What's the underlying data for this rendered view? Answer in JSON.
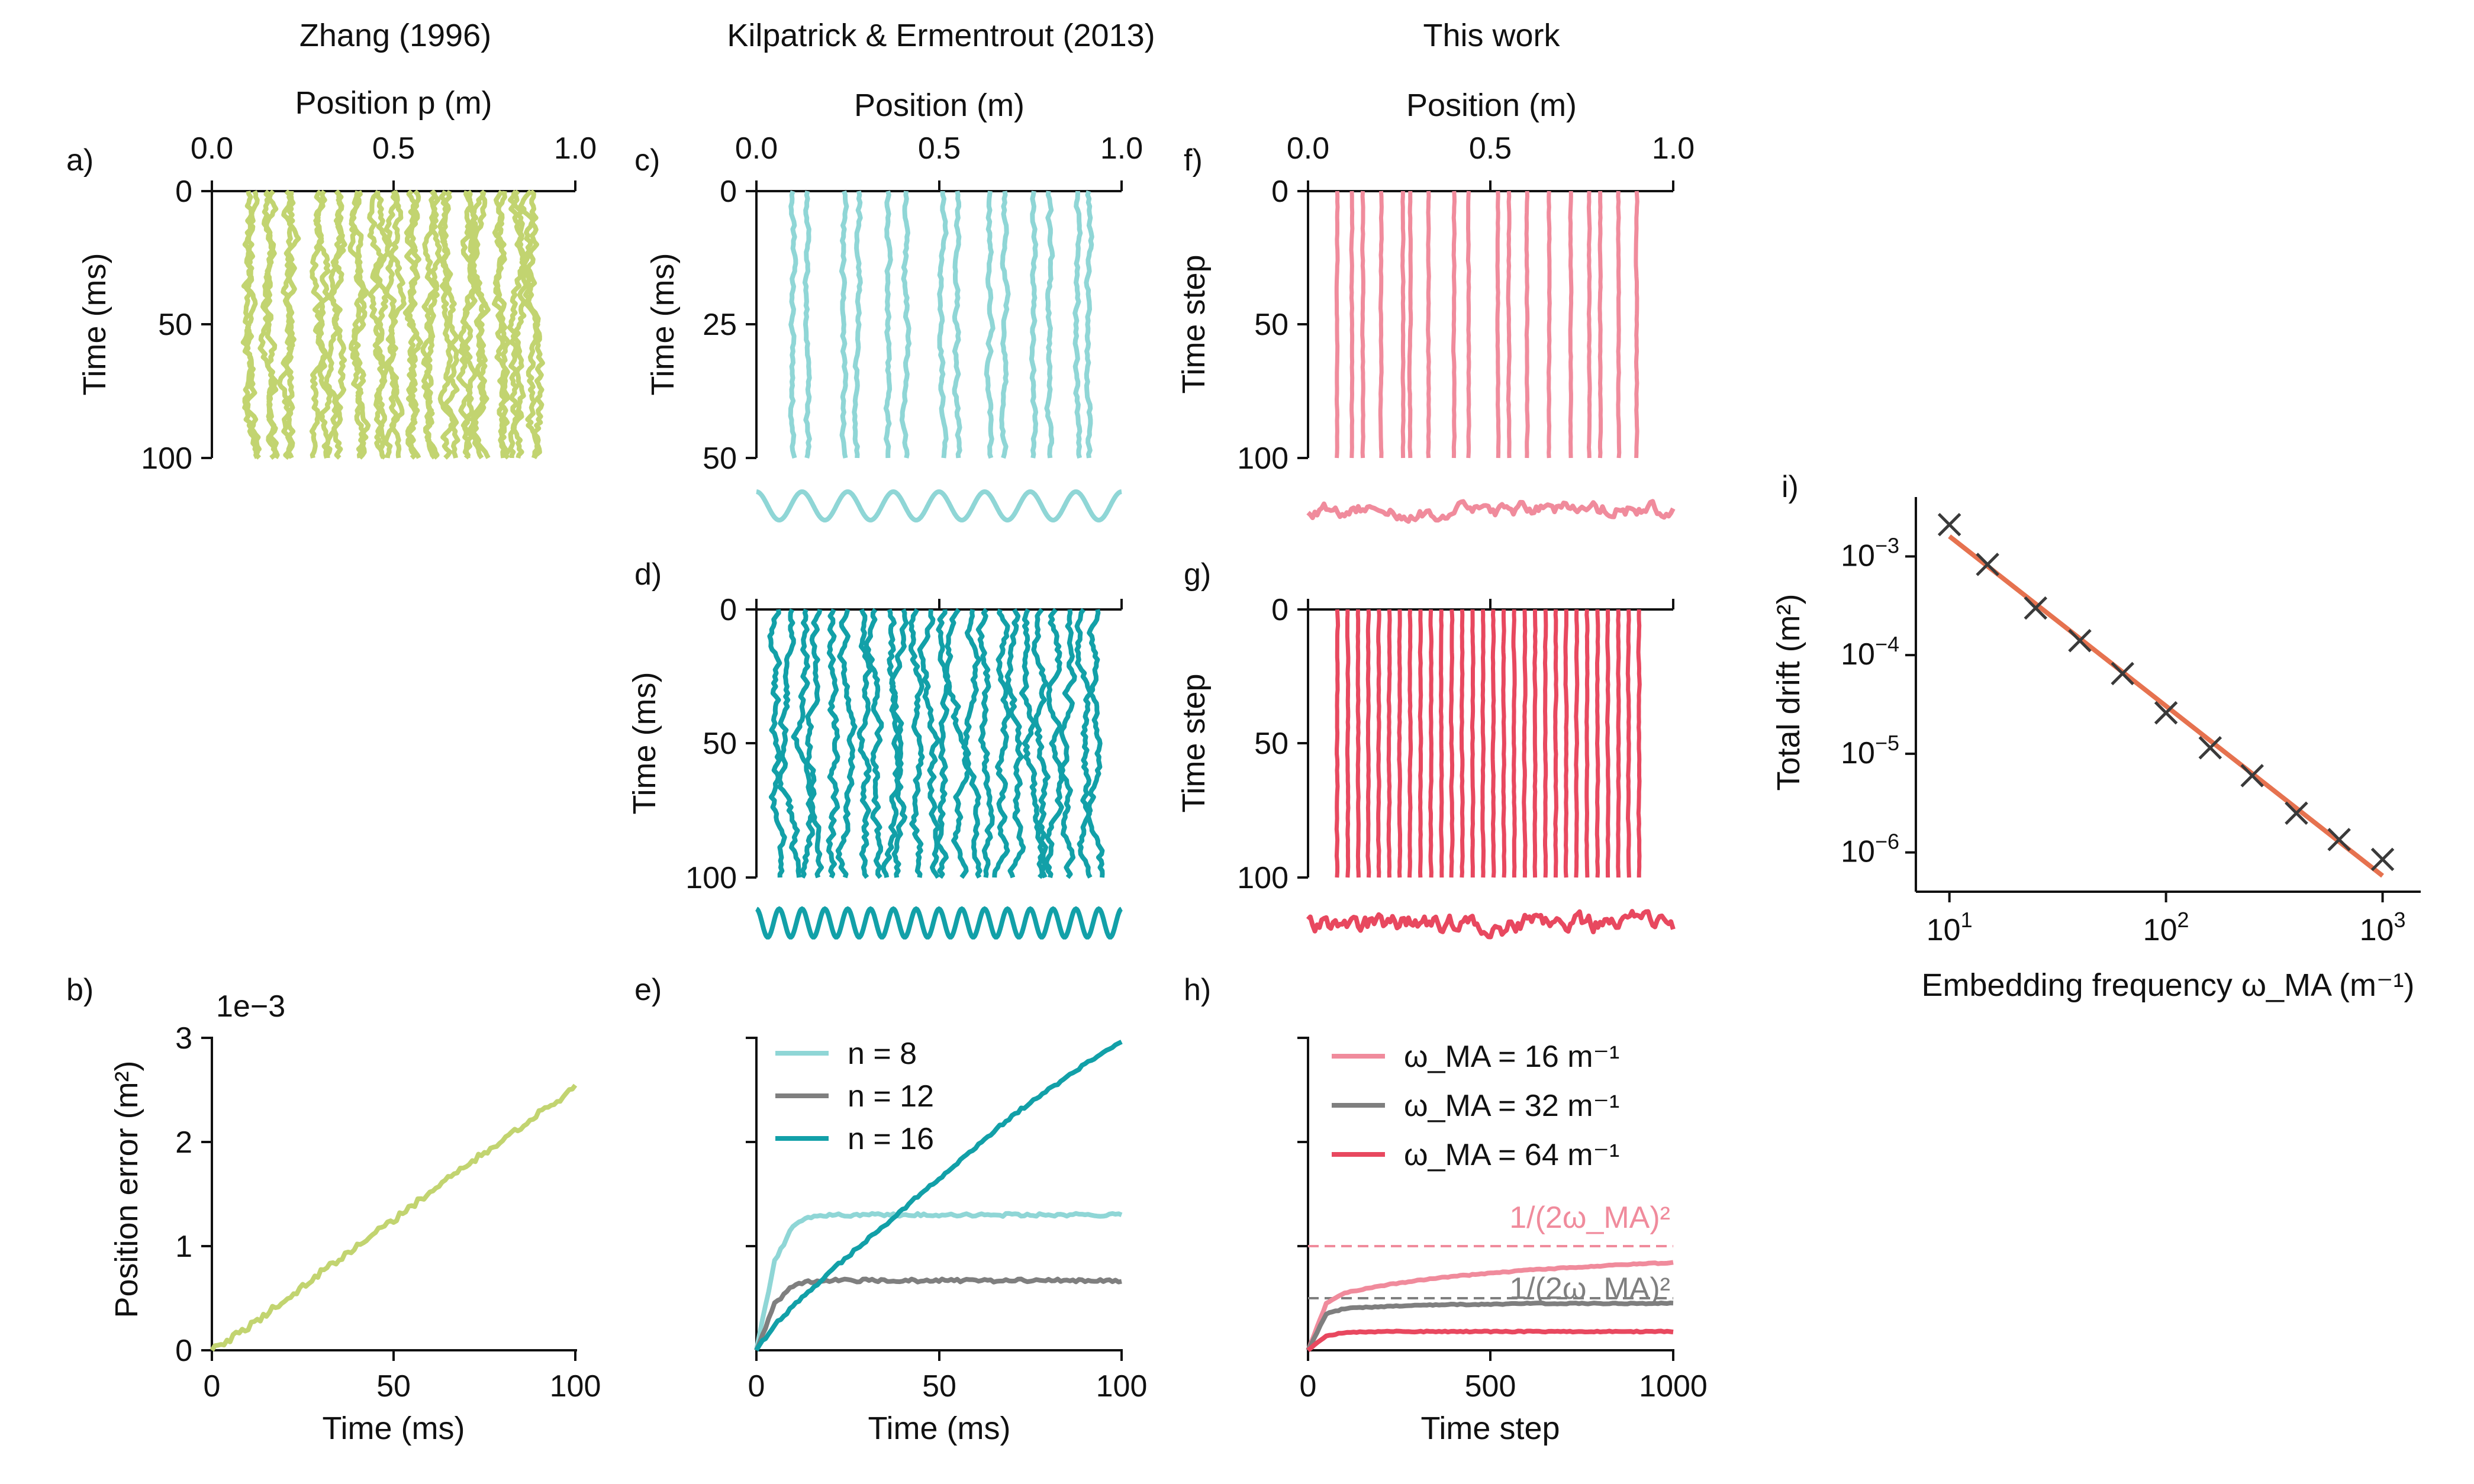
{
  "colors": {
    "zhang": "#c2d470",
    "kilpatrick_n8": "#8fd6d6",
    "kilpatrick_n16": "#12a0a8",
    "gray": "#7f7f7f",
    "this_w16": "#f08b9c",
    "this_w64": "#e8485f",
    "fit_line": "#e6724f",
    "marker": "#3a3a3a"
  },
  "column_titles": [
    "Zhang (1996)",
    "Kilpatrick & Ermentrout (2013)",
    "This work"
  ],
  "panel_letters": [
    "a)",
    "b)",
    "c)",
    "d)",
    "e)",
    "f)",
    "g)",
    "h)",
    "i)"
  ],
  "chart_data": [
    {
      "id": "a",
      "type": "line",
      "title": "Zhang (1996)",
      "xlabel": "Position p (m)",
      "ylabel": "Time (ms)",
      "xlim": [
        0,
        1
      ],
      "ylim": [
        100,
        0
      ],
      "xticks": [
        "0.0",
        "0.5",
        "1.0"
      ],
      "yticks": [
        "0",
        "50",
        "100"
      ],
      "trajectories": "clusters of noisy trajectories at approx. 0.12, 0.20, 0.33, 0.42, 0.50, 0.57, 0.68, 0.77, 0.84"
    },
    {
      "id": "b",
      "type": "line",
      "xlabel": "Time (ms)",
      "ylabel": "Position error (m²)",
      "scale_label": "1e−3",
      "xlim": [
        0,
        100
      ],
      "ylim": [
        0,
        3
      ],
      "xticks": [
        "0",
        "50",
        "100"
      ],
      "yticks": [
        "0",
        "1",
        "2",
        "3"
      ],
      "x": [
        0,
        10,
        20,
        30,
        40,
        50,
        60,
        70,
        80,
        90,
        100
      ],
      "series": [
        {
          "name": "Zhang",
          "values": [
            0,
            0.22,
            0.48,
            0.75,
            1.0,
            1.25,
            1.52,
            1.78,
            2.02,
            2.28,
            2.52
          ]
        }
      ]
    },
    {
      "id": "c",
      "type": "line",
      "xlabel": "Position (m)",
      "ylabel": "Time (ms)",
      "xlim": [
        0,
        1
      ],
      "ylim": [
        50,
        0
      ],
      "xticks": [
        "0.0",
        "0.5",
        "1.0"
      ],
      "yticks": [
        "0",
        "25",
        "50"
      ],
      "bumps": 8
    },
    {
      "id": "d",
      "type": "line",
      "ylabel": "Time (ms)",
      "xlim": [
        0,
        1
      ],
      "ylim": [
        100,
        0
      ],
      "yticks": [
        "0",
        "50",
        "100"
      ],
      "bumps": 16
    },
    {
      "id": "e",
      "type": "line",
      "xlabel": "Time (ms)",
      "xlim": [
        0,
        100
      ],
      "xticks": [
        "0",
        "50",
        "100"
      ],
      "x": [
        0,
        5,
        10,
        15,
        20,
        30,
        40,
        50,
        60,
        70,
        80,
        90,
        100
      ],
      "series": [
        {
          "name": "n = 8",
          "values": [
            0,
            0.85,
            1.2,
            1.28,
            1.3,
            1.3,
            1.3,
            1.3,
            1.3,
            1.3,
            1.3,
            1.3,
            1.3
          ]
        },
        {
          "name": "n = 12",
          "values": [
            0,
            0.45,
            0.62,
            0.66,
            0.67,
            0.67,
            0.67,
            0.67,
            0.67,
            0.67,
            0.67,
            0.67,
            0.67
          ]
        },
        {
          "name": "n = 16",
          "values": [
            0,
            0.25,
            0.42,
            0.58,
            0.75,
            1.05,
            1.35,
            1.65,
            1.95,
            2.25,
            2.5,
            2.75,
            2.97
          ]
        }
      ],
      "ylim": [
        0,
        3
      ]
    },
    {
      "id": "f",
      "type": "line",
      "title": "This work",
      "xlabel": "Position (m)",
      "ylabel": "Time step",
      "xlim": [
        0,
        1
      ],
      "ylim": [
        100,
        0
      ],
      "xticks": [
        "0.0",
        "0.5",
        "1.0"
      ],
      "yticks": [
        "0",
        "50",
        "100"
      ]
    },
    {
      "id": "g",
      "type": "line",
      "ylabel": "Time step",
      "xlim": [
        0,
        1
      ],
      "ylim": [
        100,
        0
      ],
      "yticks": [
        "0",
        "50",
        "100"
      ]
    },
    {
      "id": "h",
      "type": "line",
      "xlabel": "Time step",
      "xlim": [
        0,
        1000
      ],
      "xticks": [
        "0",
        "500",
        "1000"
      ],
      "ylim": [
        0,
        3
      ],
      "x": [
        0,
        50,
        100,
        200,
        300,
        400,
        500,
        600,
        700,
        800,
        900,
        1000
      ],
      "series": [
        {
          "name": "ω_MA = 16 m⁻¹",
          "values": [
            0,
            0.45,
            0.55,
            0.62,
            0.67,
            0.71,
            0.74,
            0.77,
            0.79,
            0.81,
            0.83,
            0.84
          ]
        },
        {
          "name": "ω_MA = 32 m⁻¹",
          "values": [
            0,
            0.35,
            0.4,
            0.42,
            0.43,
            0.44,
            0.44,
            0.45,
            0.45,
            0.45,
            0.45,
            0.45
          ]
        },
        {
          "name": "ω_MA = 64 m⁻¹",
          "values": [
            0,
            0.14,
            0.17,
            0.18,
            0.18,
            0.18,
            0.18,
            0.18,
            0.18,
            0.18,
            0.18,
            0.18
          ]
        }
      ],
      "reference_lines": [
        {
          "label": "1/(2ω_MA)²",
          "value": 1.0,
          "series": "ω_MA = 16 m⁻¹"
        },
        {
          "label": "1/(2ω_MA)²",
          "value": 0.5,
          "series": "ω_MA = 32 m⁻¹"
        }
      ]
    },
    {
      "id": "i",
      "type": "scatter",
      "xlabel": "Embedding frequency ω_MA (m⁻¹)",
      "ylabel": "Total drift (m²)",
      "xscale": "log",
      "yscale": "log",
      "xlim": [
        7,
        1500
      ],
      "ylim": [
        4e-07,
        0.004
      ],
      "x": [
        10,
        15,
        25,
        40,
        63,
        100,
        160,
        250,
        400,
        630,
        1000
      ],
      "y": [
        0.0021,
        0.00083,
        0.0003,
        0.00014,
        6.5e-05,
        2.6e-05,
        1.15e-05,
        6e-06,
        2.5e-06,
        1.35e-06,
        8.5e-07
      ],
      "fit": {
        "x": [
          10,
          1000
        ],
        "y": [
          0.0016,
          5.8e-07
        ]
      }
    }
  ],
  "labels": {
    "a_xlabel": "Position p (m)",
    "time_ms": "Time (ms)",
    "time_step": "Time step",
    "position_m": "Position (m)",
    "position_error": "Position error (m²)",
    "scale_1e3": "1e−3",
    "total_drift": "Total drift (m²)",
    "embedding_freq": "Embedding frequency ω_MA (m⁻¹)"
  },
  "legend_e": [
    "n = 8",
    "n = 12",
    "n = 16"
  ],
  "legend_h": [
    "ω_MA = 16 m⁻¹",
    "ω_MA = 32 m⁻¹",
    "ω_MA = 64 m⁻¹"
  ],
  "ref_label": "1/(2ω_MA)²"
}
